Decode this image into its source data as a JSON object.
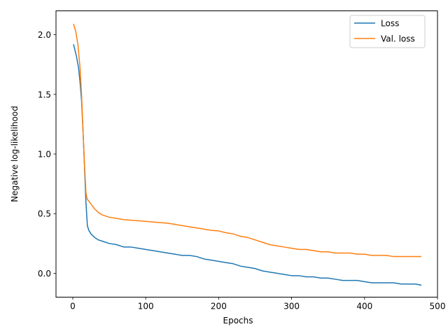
{
  "chart_data": {
    "type": "line",
    "xlabel": "Epochs",
    "ylabel": "Negative log-likelihood",
    "xlim": [
      -23,
      500
    ],
    "ylim": [
      -0.2,
      2.2
    ],
    "xticks": [
      0,
      100,
      200,
      300,
      400,
      500
    ],
    "xtick_labels": [
      "0",
      "100",
      "200",
      "300",
      "400",
      "500"
    ],
    "yticks": [
      0.0,
      0.5,
      1.0,
      1.5,
      2.0
    ],
    "ytick_labels": [
      "0.0",
      "0.5",
      "1.0",
      "1.5",
      "2.0"
    ],
    "grid": false,
    "legend_position": "top-right",
    "series": [
      {
        "name": "Loss",
        "color": "#1f77b4",
        "x": [
          1,
          5,
          8,
          10,
          12,
          14,
          16,
          18,
          19,
          20,
          22,
          25,
          30,
          35,
          40,
          50,
          60,
          70,
          80,
          90,
          100,
          110,
          120,
          130,
          140,
          150,
          160,
          170,
          180,
          190,
          200,
          210,
          220,
          230,
          240,
          250,
          260,
          270,
          280,
          290,
          300,
          310,
          320,
          330,
          340,
          350,
          360,
          370,
          380,
          390,
          400,
          410,
          420,
          430,
          440,
          450,
          460,
          470,
          478
        ],
        "y": [
          1.92,
          1.82,
          1.72,
          1.6,
          1.45,
          1.2,
          0.9,
          0.6,
          0.5,
          0.4,
          0.36,
          0.33,
          0.3,
          0.28,
          0.27,
          0.25,
          0.24,
          0.22,
          0.22,
          0.21,
          0.2,
          0.19,
          0.18,
          0.17,
          0.16,
          0.15,
          0.15,
          0.14,
          0.12,
          0.11,
          0.1,
          0.09,
          0.08,
          0.06,
          0.05,
          0.04,
          0.02,
          0.01,
          0.0,
          -0.01,
          -0.02,
          -0.02,
          -0.03,
          -0.03,
          -0.04,
          -0.04,
          -0.05,
          -0.06,
          -0.06,
          -0.06,
          -0.07,
          -0.08,
          -0.08,
          -0.08,
          -0.08,
          -0.09,
          -0.09,
          -0.09,
          -0.1
        ]
      },
      {
        "name": "Val. loss",
        "color": "#ff7f0e",
        "x": [
          1,
          4,
          7,
          10,
          12,
          14,
          16,
          18,
          19,
          20,
          25,
          30,
          35,
          40,
          50,
          60,
          70,
          80,
          90,
          100,
          110,
          120,
          130,
          140,
          150,
          160,
          170,
          180,
          190,
          200,
          210,
          220,
          230,
          240,
          250,
          260,
          270,
          280,
          290,
          300,
          310,
          320,
          330,
          340,
          350,
          360,
          370,
          380,
          390,
          400,
          410,
          420,
          430,
          440,
          450,
          460,
          470,
          478
        ],
        "y": [
          2.09,
          2.03,
          1.92,
          1.72,
          1.5,
          1.2,
          0.92,
          0.68,
          0.64,
          0.62,
          0.58,
          0.54,
          0.51,
          0.49,
          0.47,
          0.46,
          0.45,
          0.445,
          0.44,
          0.435,
          0.43,
          0.425,
          0.42,
          0.41,
          0.4,
          0.39,
          0.38,
          0.37,
          0.36,
          0.355,
          0.34,
          0.33,
          0.31,
          0.3,
          0.28,
          0.26,
          0.24,
          0.23,
          0.22,
          0.21,
          0.2,
          0.2,
          0.19,
          0.18,
          0.18,
          0.17,
          0.17,
          0.17,
          0.16,
          0.16,
          0.15,
          0.15,
          0.15,
          0.14,
          0.14,
          0.14,
          0.14,
          0.14
        ]
      }
    ]
  }
}
